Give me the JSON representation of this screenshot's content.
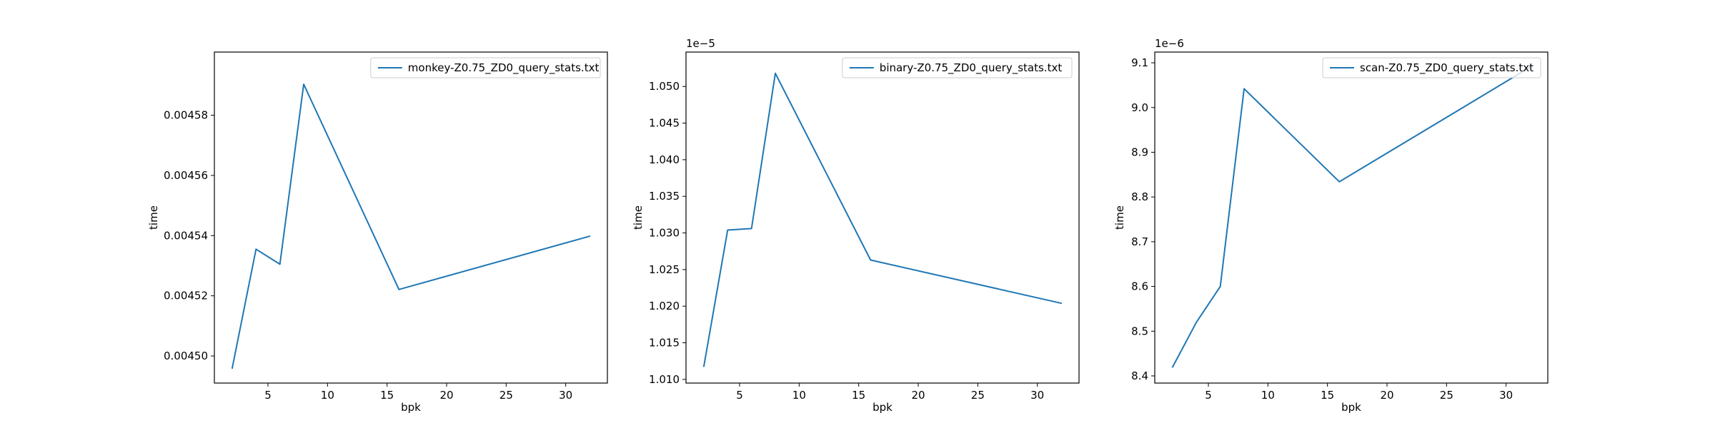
{
  "chart_data": [
    {
      "type": "line",
      "xlabel": "bpk",
      "ylabel": "time",
      "offset_text": "",
      "xlim": [
        0.5,
        33.5
      ],
      "ylim": [
        0.004491,
        0.004601
      ],
      "xticks": [
        5,
        10,
        15,
        20,
        25,
        30
      ],
      "xtick_labels": [
        "5",
        "10",
        "15",
        "20",
        "25",
        "30"
      ],
      "yticks": [
        0.0045,
        0.00452,
        0.00454,
        0.00456,
        0.00458
      ],
      "ytick_labels": [
        "0.00450",
        "0.00452",
        "0.00454",
        "0.00456",
        "0.00458"
      ],
      "legend": "top-right",
      "grid": false,
      "series": [
        {
          "name": "monkey-Z0.75_ZD0_query_stats.txt",
          "color": "#1f77b4",
          "x": [
            2,
            4,
            6,
            8,
            16,
            32
          ],
          "y": [
            0.004496,
            0.0045355,
            0.0045305,
            0.0045903,
            0.0045221,
            0.0045398
          ]
        }
      ]
    },
    {
      "type": "line",
      "xlabel": "bpk",
      "ylabel": "time",
      "offset_text": "1e−5",
      "xlim": [
        0.5,
        33.5
      ],
      "ylim": [
        1.0095,
        1.0547
      ],
      "xticks": [
        5,
        10,
        15,
        20,
        25,
        30
      ],
      "xtick_labels": [
        "5",
        "10",
        "15",
        "20",
        "25",
        "30"
      ],
      "yticks": [
        1.01,
        1.015,
        1.02,
        1.025,
        1.03,
        1.035,
        1.04,
        1.045,
        1.05
      ],
      "ytick_labels": [
        "1.010",
        "1.015",
        "1.020",
        "1.025",
        "1.030",
        "1.035",
        "1.040",
        "1.045",
        "1.050"
      ],
      "legend": "top-right",
      "grid": false,
      "series": [
        {
          "name": "binary-Z0.75_ZD0_query_stats.txt",
          "color": "#1f77b4",
          "x": [
            2,
            4,
            6,
            8,
            16,
            32
          ],
          "y": [
            1.0118,
            1.0304,
            1.0306,
            1.0518,
            1.0263,
            1.0204
          ]
        }
      ]
    },
    {
      "type": "line",
      "xlabel": "bpk",
      "ylabel": "time",
      "offset_text": "1e−6",
      "xlim": [
        0.5,
        33.5
      ],
      "ylim": [
        8.384,
        9.124
      ],
      "xticks": [
        5,
        10,
        15,
        20,
        25,
        30
      ],
      "xtick_labels": [
        "5",
        "10",
        "15",
        "20",
        "25",
        "30"
      ],
      "yticks": [
        8.4,
        8.5,
        8.6,
        8.7,
        8.8,
        8.9,
        9.0,
        9.1
      ],
      "ytick_labels": [
        "8.4",
        "8.5",
        "8.6",
        "8.7",
        "8.8",
        "8.9",
        "9.0",
        "9.1"
      ],
      "legend": "top-right",
      "grid": false,
      "series": [
        {
          "name": "scan-Z0.75_ZD0_query_stats.txt",
          "color": "#1f77b4",
          "x": [
            2,
            4,
            6,
            8,
            16,
            32
          ],
          "y": [
            8.42,
            8.52,
            8.6,
            9.042,
            8.834,
            9.09
          ]
        }
      ]
    }
  ]
}
